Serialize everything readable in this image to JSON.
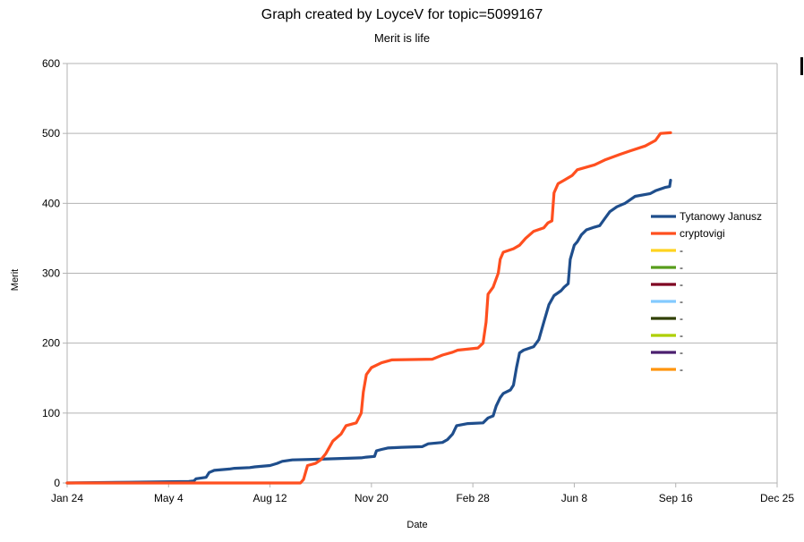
{
  "chart_data": {
    "type": "line",
    "title": "Graph created by LoyceV for topic=5099167",
    "subtitle": "Merit is life",
    "xlabel": "Date",
    "ylabel": "Merit",
    "x_ticks": [
      "Jan 24",
      "May 4",
      "Aug 12",
      "Nov 20",
      "Feb 28",
      "Jun 8",
      "Sep 16",
      "Dec 25"
    ],
    "xlim": [
      0,
      700
    ],
    "ylim": [
      0,
      600
    ],
    "y_ticks": [
      0,
      100,
      200,
      300,
      400,
      500,
      600
    ],
    "grid": "horizontal",
    "legend_position": "right",
    "series": [
      {
        "name": "Tytanowy Janusz",
        "color": "#1f4e8c",
        "points": [
          [
            0,
            0
          ],
          [
            60,
            1
          ],
          [
            120,
            2
          ],
          [
            125,
            3
          ],
          [
            127,
            6
          ],
          [
            137,
            8
          ],
          [
            140,
            15
          ],
          [
            145,
            18
          ],
          [
            160,
            20
          ],
          [
            165,
            21
          ],
          [
            180,
            22
          ],
          [
            185,
            23
          ],
          [
            200,
            25
          ],
          [
            207,
            28
          ],
          [
            212,
            31
          ],
          [
            222,
            33
          ],
          [
            250,
            34
          ],
          [
            270,
            35
          ],
          [
            290,
            36
          ],
          [
            295,
            37
          ],
          [
            303,
            38
          ],
          [
            305,
            46
          ],
          [
            310,
            48
          ],
          [
            316,
            50
          ],
          [
            330,
            51
          ],
          [
            350,
            52
          ],
          [
            356,
            56
          ],
          [
            370,
            58
          ],
          [
            375,
            62
          ],
          [
            380,
            70
          ],
          [
            384,
            82
          ],
          [
            395,
            85
          ],
          [
            410,
            86
          ],
          [
            415,
            93
          ],
          [
            420,
            96
          ],
          [
            423,
            110
          ],
          [
            427,
            122
          ],
          [
            430,
            128
          ],
          [
            437,
            133
          ],
          [
            440,
            140
          ],
          [
            443,
            165
          ],
          [
            446,
            186
          ],
          [
            450,
            190
          ],
          [
            460,
            195
          ],
          [
            465,
            205
          ],
          [
            470,
            230
          ],
          [
            475,
            255
          ],
          [
            480,
            268
          ],
          [
            487,
            275
          ],
          [
            490,
            280
          ],
          [
            494,
            285
          ],
          [
            496,
            320
          ],
          [
            500,
            340
          ],
          [
            503,
            345
          ],
          [
            507,
            355
          ],
          [
            512,
            362
          ],
          [
            520,
            366
          ],
          [
            525,
            368
          ],
          [
            530,
            378
          ],
          [
            535,
            388
          ],
          [
            542,
            395
          ],
          [
            550,
            400
          ],
          [
            555,
            405
          ],
          [
            560,
            410
          ],
          [
            575,
            414
          ],
          [
            580,
            418
          ],
          [
            590,
            423
          ],
          [
            594,
            424
          ],
          [
            595,
            433
          ]
        ]
      },
      {
        "name": "cryptovigi",
        "color": "#ff4f1f",
        "points": [
          [
            0,
            0
          ],
          [
            230,
            0
          ],
          [
            233,
            5
          ],
          [
            237,
            25
          ],
          [
            245,
            28
          ],
          [
            250,
            33
          ],
          [
            255,
            42
          ],
          [
            262,
            60
          ],
          [
            270,
            70
          ],
          [
            275,
            82
          ],
          [
            285,
            86
          ],
          [
            290,
            100
          ],
          [
            292,
            130
          ],
          [
            295,
            155
          ],
          [
            300,
            165
          ],
          [
            310,
            172
          ],
          [
            320,
            176
          ],
          [
            360,
            177
          ],
          [
            365,
            180
          ],
          [
            370,
            183
          ],
          [
            380,
            187
          ],
          [
            385,
            190
          ],
          [
            405,
            193
          ],
          [
            410,
            200
          ],
          [
            413,
            230
          ],
          [
            415,
            270
          ],
          [
            420,
            280
          ],
          [
            425,
            300
          ],
          [
            427,
            320
          ],
          [
            430,
            330
          ],
          [
            440,
            335
          ],
          [
            446,
            340
          ],
          [
            452,
            350
          ],
          [
            460,
            360
          ],
          [
            470,
            365
          ],
          [
            474,
            372
          ],
          [
            478,
            375
          ],
          [
            480,
            415
          ],
          [
            484,
            428
          ],
          [
            490,
            433
          ],
          [
            498,
            440
          ],
          [
            503,
            448
          ],
          [
            520,
            455
          ],
          [
            530,
            462
          ],
          [
            545,
            470
          ],
          [
            555,
            475
          ],
          [
            570,
            482
          ],
          [
            580,
            490
          ],
          [
            585,
            500
          ],
          [
            595,
            501
          ]
        ]
      }
    ],
    "legend": [
      {
        "label": "Tytanowy Janusz",
        "color": "#1f4e8c"
      },
      {
        "label": "cryptovigi",
        "color": "#ff4f1f"
      },
      {
        "label": "-",
        "color": "#ffd320"
      },
      {
        "label": "-",
        "color": "#579d1c"
      },
      {
        "label": "-",
        "color": "#7e0021"
      },
      {
        "label": "-",
        "color": "#83caff"
      },
      {
        "label": "-",
        "color": "#314004"
      },
      {
        "label": "-",
        "color": "#aecf00"
      },
      {
        "label": "-",
        "color": "#4b1f6f"
      },
      {
        "label": "-",
        "color": "#ff950e"
      }
    ]
  }
}
